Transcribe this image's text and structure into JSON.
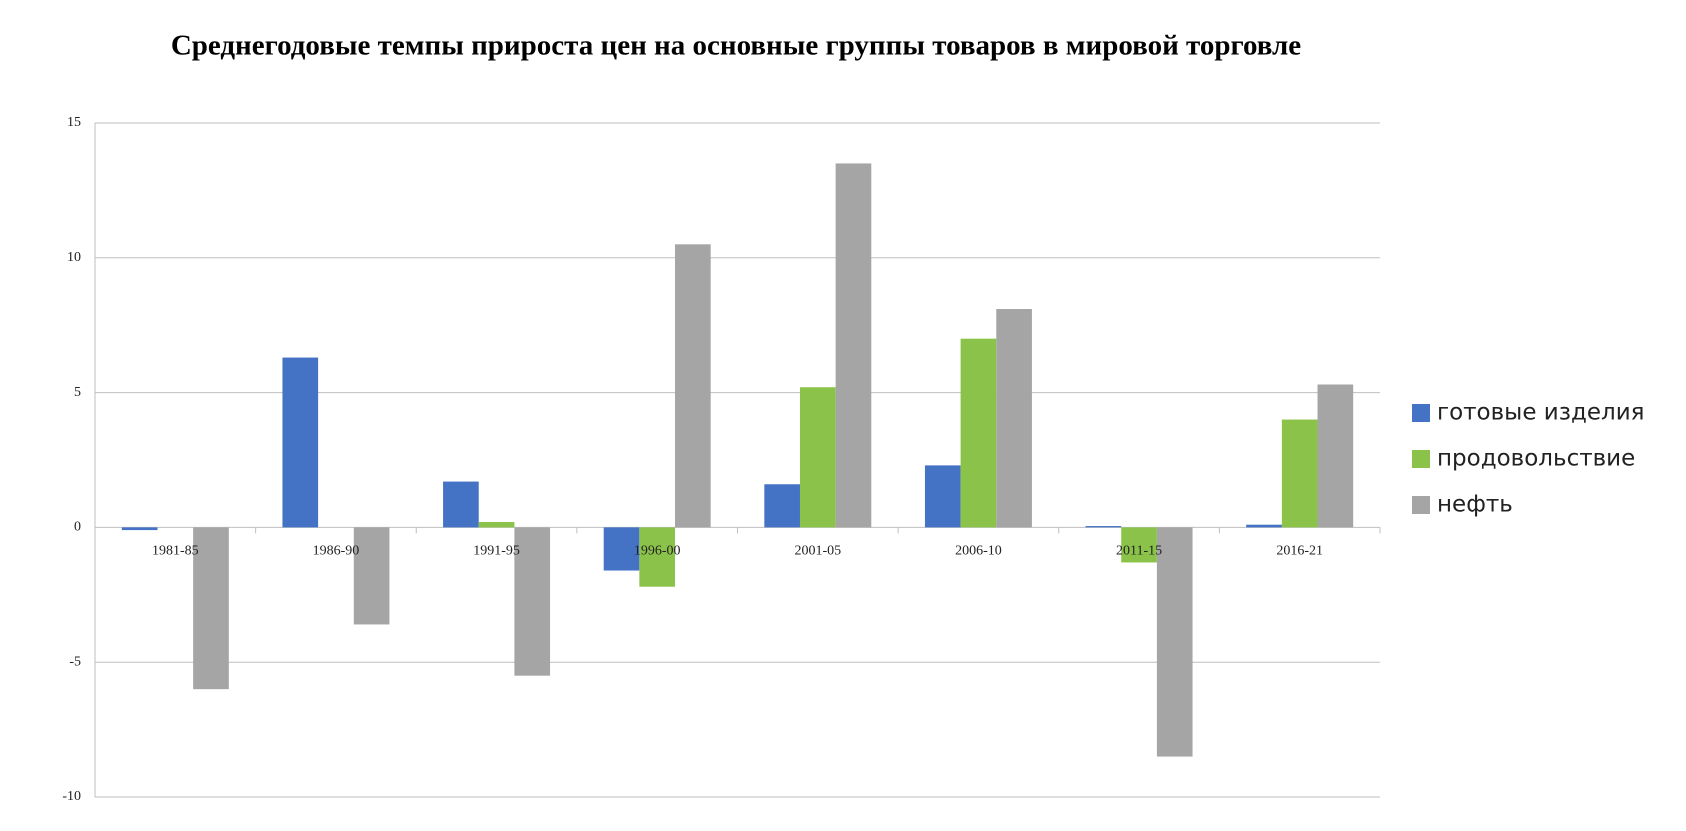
{
  "chart_data": {
    "type": "bar",
    "title": "Среднегодовые темпы прироста цен на основные группы товаров в мировой торговле",
    "categories": [
      "1981-85",
      "1986-90",
      "1991-95",
      "1996-00",
      "2001-05",
      "2006-10",
      "2011-15",
      "2016-21"
    ],
    "series": [
      {
        "name": "готовые изделия",
        "color": "#4472c4",
        "values": [
          -0.1,
          6.3,
          1.7,
          -1.6,
          1.6,
          2.3,
          0.05,
          0.1
        ]
      },
      {
        "name": "продовольствие",
        "color": "#8bc34a",
        "values": [
          0,
          0,
          0.2,
          -2.2,
          5.2,
          7.0,
          -1.3,
          4.0
        ]
      },
      {
        "name": "нефть",
        "color": "#a5a5a5",
        "values": [
          -6.0,
          -3.6,
          -5.5,
          10.5,
          13.5,
          8.1,
          -8.5,
          5.3
        ]
      }
    ],
    "ylim": [
      -10,
      15
    ],
    "yticks": [
      -10,
      -5,
      0,
      5,
      10,
      15
    ],
    "grid": true,
    "legend": "right"
  }
}
